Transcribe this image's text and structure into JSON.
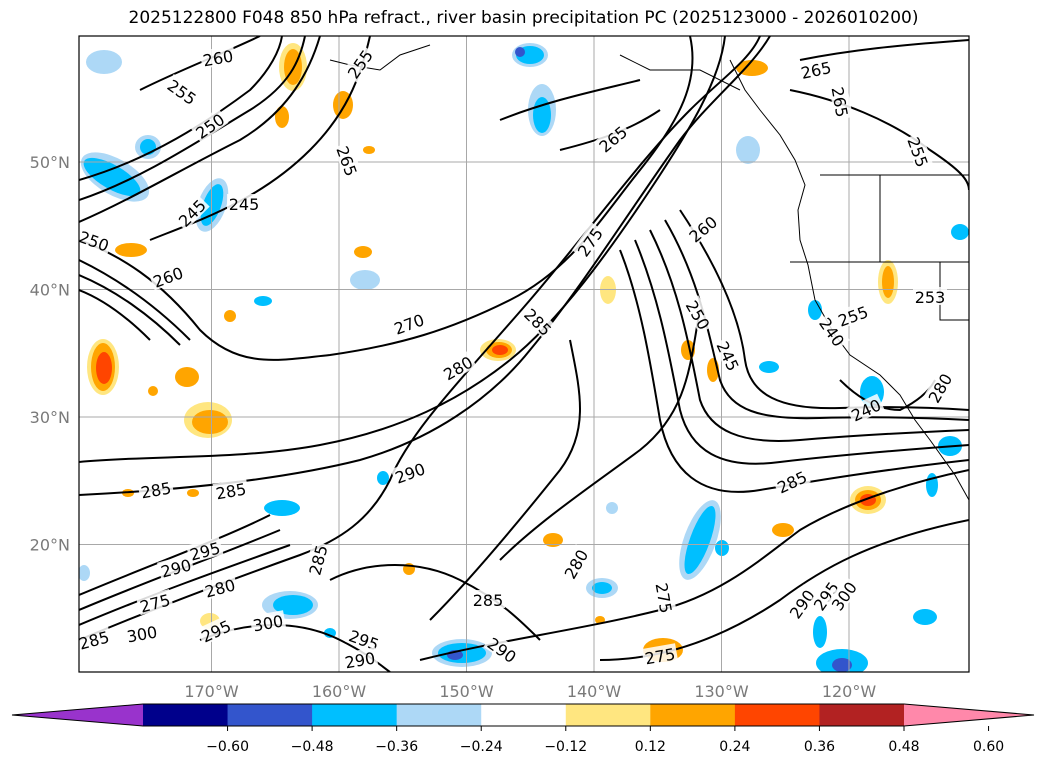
{
  "title": "2025122800 F048 850 hPa refract., river basin precipitation PC (2025123000 - 2026010200)",
  "map": {
    "lat_labels": [
      {
        "deg": 50,
        "text": "50°N"
      },
      {
        "deg": 40,
        "text": "40°N"
      },
      {
        "deg": 30,
        "text": "30°N"
      },
      {
        "deg": 20,
        "text": "20°N"
      }
    ],
    "lon_labels": [
      {
        "deg": -170,
        "text": "170°W"
      },
      {
        "deg": -160,
        "text": "160°W"
      },
      {
        "deg": -150,
        "text": "150°W"
      },
      {
        "deg": -140,
        "text": "140°W"
      },
      {
        "deg": -130,
        "text": "130°W"
      },
      {
        "deg": -120,
        "text": "120°W"
      }
    ],
    "contour_labels": [
      "260",
      "255",
      "250",
      "245",
      "245",
      "250",
      "260",
      "255",
      "265",
      "265",
      "265",
      "265",
      "255",
      "270",
      "275",
      "285",
      "260",
      "250",
      "245",
      "280",
      "253",
      "255",
      "240",
      "240",
      "285",
      "285",
      "285",
      "290",
      "295",
      "290",
      "280",
      "275",
      "285",
      "295",
      "300",
      "300",
      "295",
      "290",
      "290",
      "285",
      "280",
      "275",
      "290",
      "295",
      "300",
      "275",
      "280",
      "285"
    ]
  },
  "colorbar": {
    "colors": [
      "#9933cc",
      "#00008b",
      "#3355cc",
      "#00bfff",
      "#add8f6",
      "#ffffff",
      "#ffe680",
      "#ffa500",
      "#ff4500",
      "#b22222",
      "#ff88aa"
    ],
    "tick_labels": [
      "−0.60",
      "−0.48",
      "−0.36",
      "−0.24",
      "−0.12",
      "0.12",
      "0.24",
      "0.36",
      "0.48",
      "0.60"
    ]
  }
}
